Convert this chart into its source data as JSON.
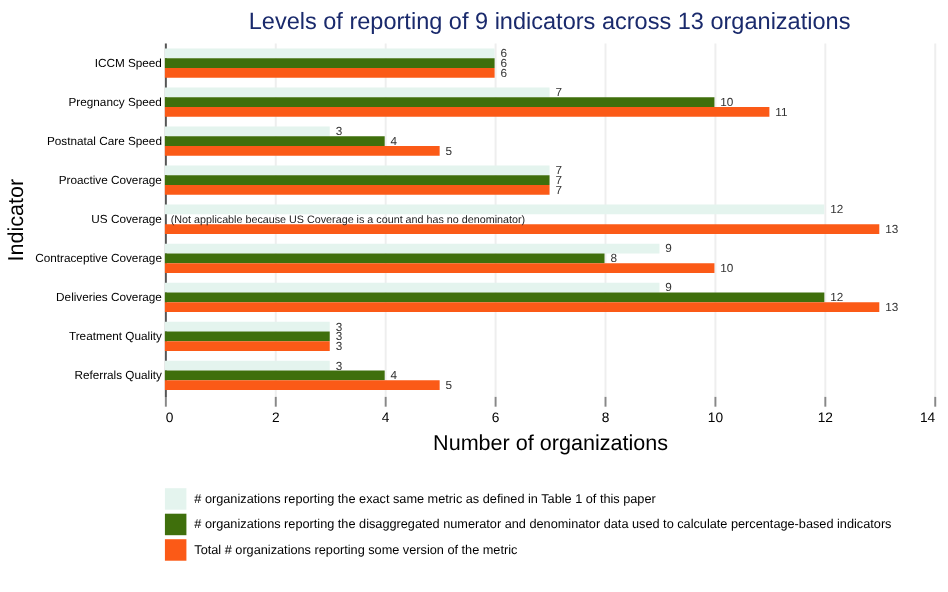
{
  "chart_data": {
    "type": "bar",
    "orientation": "horizontal",
    "title": "Levels of reporting of 9 indicators across 13 organizations",
    "xlabel": "Number of organizations",
    "ylabel": "Indicator",
    "categories": [
      "ICCM Speed",
      "Pregnancy Speed",
      "Postnatal Care Speed",
      "Proactive Coverage",
      "US Coverage",
      "Contraceptive Coverage",
      "Deliveries Coverage",
      "Treatment Quality",
      "Referrals Quality"
    ],
    "series": [
      {
        "name": "# organizations reporting the exact same metric as defined in Table 1 of this paper",
        "color": "#e4f4ee",
        "values": [
          6,
          7,
          3,
          7,
          12,
          9,
          9,
          3,
          3
        ]
      },
      {
        "name": "# organizations reporting the disaggregated numerator and denominator data used to calculate percentage-based indicators",
        "color": "#3f6f0c",
        "values": [
          6,
          10,
          4,
          7,
          null,
          8,
          12,
          3,
          4
        ]
      },
      {
        "name": "Total # organizations reporting some version of the metric",
        "color": "#fb5a17",
        "values": [
          6,
          11,
          5,
          7,
          13,
          10,
          13,
          3,
          5
        ]
      }
    ],
    "xlim": [
      0,
      14
    ],
    "xticks": [
      0,
      2,
      4,
      6,
      8,
      10,
      12,
      14
    ],
    "grid": "x",
    "legend": "bottom",
    "data_labels": true,
    "annotations": [
      {
        "text": "(Not applicable because US Coverage is a count and has no denominator)",
        "x": 0,
        "y": "US Coverage"
      }
    ]
  }
}
